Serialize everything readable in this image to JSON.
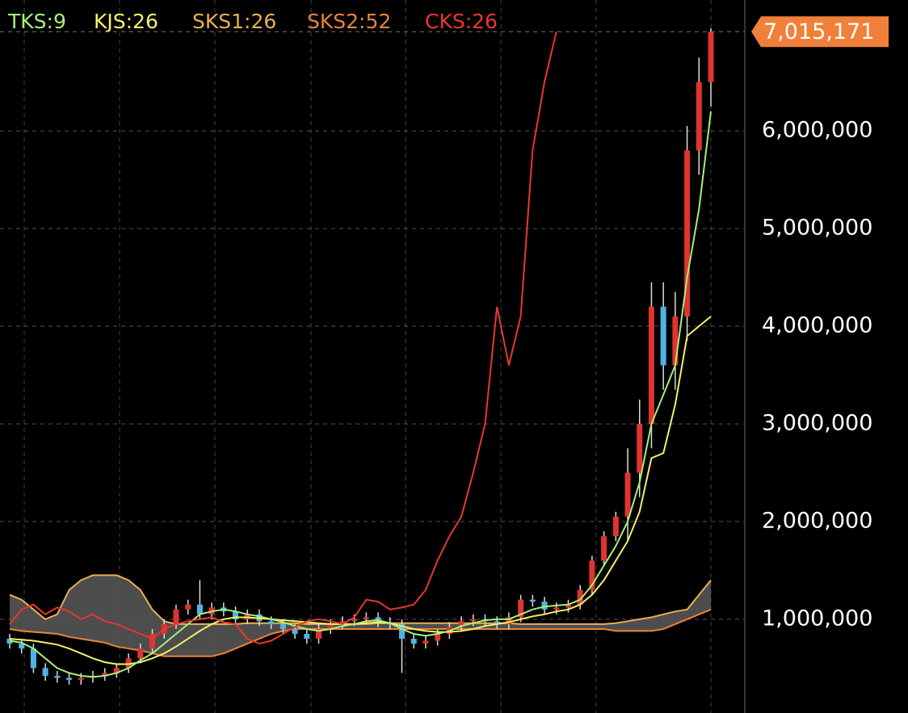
{
  "chart_data": {
    "type": "candlestick",
    "ylim": [
      40000,
      7340000
    ],
    "yticks": [
      {
        "value": 1000000,
        "label": "1,000,000"
      },
      {
        "value": 2000000,
        "label": "2,000,000"
      },
      {
        "value": 3000000,
        "label": "3,000,000"
      },
      {
        "value": 4000000,
        "label": "4,000,000"
      },
      {
        "value": 5000000,
        "label": "5,000,000"
      },
      {
        "value": 6000000,
        "label": "6,000,000"
      }
    ],
    "grid": true,
    "up_color": "#e0342f",
    "down_color": "#4fb3e8",
    "cloud_color": "#555555",
    "last_price": {
      "value": 7015171,
      "label": "7,015,171"
    },
    "last_price_color": "#f0803a",
    "open": [
      800000,
      750000,
      700000,
      500000,
      420000,
      400000,
      380000,
      400000,
      420000,
      450000,
      500000,
      600000,
      700000,
      850000,
      950000,
      1100000,
      1150000,
      1050000,
      1120000,
      1080000,
      1000000,
      1050000,
      980000,
      950000,
      900000,
      850000,
      800000,
      900000,
      950000,
      980000,
      1000000,
      1020000,
      970000,
      950000,
      800000,
      750000,
      780000,
      850000,
      920000,
      980000,
      1000000,
      980000,
      950000,
      1020000,
      1200000,
      1180000,
      1100000,
      1120000,
      1150000,
      1300000,
      1600000,
      1850000,
      2050000,
      2500000,
      3000000,
      4200000,
      3600000,
      4100000,
      5800000,
      6500000
    ],
    "high": [
      850000,
      800000,
      750000,
      550000,
      470000,
      450000,
      450000,
      470000,
      500000,
      550000,
      650000,
      750000,
      900000,
      1000000,
      1150000,
      1200000,
      1400000,
      1170000,
      1170000,
      1130000,
      1100000,
      1100000,
      1030000,
      1000000,
      950000,
      900000,
      950000,
      1000000,
      1030000,
      1050000,
      1070000,
      1070000,
      1020000,
      1000000,
      850000,
      830000,
      900000,
      970000,
      1030000,
      1050000,
      1050000,
      1030000,
      1070000,
      1250000,
      1250000,
      1230000,
      1170000,
      1200000,
      1350000,
      1650000,
      1900000,
      2100000,
      2750000,
      3250000,
      4450000,
      4450000,
      4350000,
      6050000,
      6750000,
      7050000
    ],
    "low": [
      700000,
      650000,
      450000,
      370000,
      350000,
      330000,
      330000,
      350000,
      370000,
      400000,
      450000,
      550000,
      650000,
      800000,
      900000,
      1050000,
      1000000,
      1000000,
      1030000,
      950000,
      950000,
      930000,
      900000,
      850000,
      800000,
      750000,
      750000,
      850000,
      900000,
      930000,
      950000,
      920000,
      900000,
      450000,
      700000,
      700000,
      730000,
      800000,
      870000,
      930000,
      930000,
      900000,
      900000,
      970000,
      1130000,
      1050000,
      1050000,
      1070000,
      1100000,
      1250000,
      1550000,
      1800000,
      1800000,
      2250000,
      2750000,
      3350000,
      3350000,
      3850000,
      5550000,
      6250000
    ],
    "close": [
      750000,
      700000,
      500000,
      420000,
      400000,
      380000,
      400000,
      420000,
      450000,
      500000,
      600000,
      700000,
      850000,
      950000,
      1100000,
      1150000,
      1050000,
      1120000,
      1080000,
      1000000,
      1050000,
      980000,
      950000,
      900000,
      850000,
      800000,
      900000,
      950000,
      980000,
      1000000,
      1020000,
      970000,
      950000,
      800000,
      750000,
      780000,
      850000,
      920000,
      980000,
      1000000,
      980000,
      950000,
      1020000,
      1200000,
      1180000,
      1100000,
      1120000,
      1150000,
      1300000,
      1600000,
      1850000,
      2050000,
      2500000,
      3000000,
      4200000,
      3600000,
      4100000,
      5800000,
      6500000,
      7015171
    ],
    "series": [
      {
        "name": "TKS:9",
        "color": "#a6f07a",
        "values": [
          780000,
          760000,
          700000,
          600000,
          500000,
          450000,
          420000,
          410000,
          420000,
          450000,
          500000,
          580000,
          650000,
          750000,
          850000,
          950000,
          1050000,
          1080000,
          1100000,
          1080000,
          1050000,
          1030000,
          1000000,
          970000,
          930000,
          900000,
          880000,
          900000,
          930000,
          950000,
          980000,
          990000,
          960000,
          900000,
          850000,
          830000,
          850000,
          880000,
          930000,
          960000,
          990000,
          1000000,
          1000000,
          1050000,
          1100000,
          1130000,
          1140000,
          1150000,
          1200000,
          1350000,
          1550000,
          1750000,
          2000000,
          2400000,
          3000000,
          3300000,
          3600000,
          4500000,
          5200000,
          6200000
        ]
      },
      {
        "name": "KJS:26",
        "color": "#f5f06a",
        "values": [
          800000,
          790000,
          780000,
          760000,
          740000,
          700000,
          650000,
          600000,
          560000,
          540000,
          540000,
          560000,
          600000,
          650000,
          720000,
          800000,
          880000,
          950000,
          1000000,
          1020000,
          1020000,
          1010000,
          1000000,
          990000,
          980000,
          970000,
          960000,
          950000,
          950000,
          950000,
          960000,
          970000,
          960000,
          930000,
          900000,
          880000,
          870000,
          870000,
          880000,
          900000,
          930000,
          950000,
          970000,
          1000000,
          1030000,
          1050000,
          1080000,
          1100000,
          1150000,
          1250000,
          1400000,
          1600000,
          1800000,
          2100000,
          2650000,
          2700000,
          3200000,
          3900000,
          4000000,
          4100000
        ]
      },
      {
        "name": "SKS1:26",
        "color": "#e8b050",
        "values": [
          1250000,
          1200000,
          1100000,
          1000000,
          1050000,
          1300000,
          1400000,
          1450000,
          1450000,
          1450000,
          1400000,
          1300000,
          1100000,
          980000,
          950000,
          950000,
          950000,
          950000,
          950000,
          950000,
          960000,
          960000,
          960000,
          960000,
          960000,
          950000,
          950000,
          950000,
          950000,
          950000,
          950000,
          960000,
          960000,
          960000,
          960000,
          960000,
          960000,
          960000,
          960000,
          960000,
          960000,
          960000,
          960000,
          950000,
          950000,
          950000,
          950000,
          950000,
          950000,
          950000,
          950000,
          960000,
          980000,
          1000000,
          1020000,
          1050000,
          1080000,
          1100000,
          1250000,
          1400000
        ]
      },
      {
        "name": "SKS2:52",
        "color": "#e8843a",
        "values": [
          900000,
          880000,
          870000,
          860000,
          850000,
          820000,
          800000,
          780000,
          760000,
          720000,
          700000,
          680000,
          650000,
          620000,
          620000,
          620000,
          620000,
          620000,
          650000,
          700000,
          750000,
          800000,
          850000,
          880000,
          900000,
          900000,
          900000,
          900000,
          900000,
          900000,
          900000,
          900000,
          900000,
          900000,
          900000,
          900000,
          900000,
          900000,
          900000,
          900000,
          900000,
          900000,
          900000,
          900000,
          900000,
          900000,
          900000,
          900000,
          900000,
          900000,
          900000,
          880000,
          880000,
          880000,
          880000,
          900000,
          950000,
          1000000,
          1050000,
          1100000
        ]
      },
      {
        "name": "CKS:26",
        "color": "#e8382e",
        "values": [
          950000,
          1100000,
          1150000,
          1050000,
          1120000,
          1080000,
          1000000,
          1050000,
          980000,
          950000,
          900000,
          850000,
          800000,
          900000,
          950000,
          980000,
          1000000,
          1020000,
          970000,
          950000,
          800000,
          750000,
          780000,
          850000,
          920000,
          980000,
          1000000,
          980000,
          950000,
          1020000,
          1200000,
          1180000,
          1100000,
          1120000,
          1150000,
          1300000,
          1600000,
          1850000,
          2050000,
          2500000,
          3000000,
          4200000,
          3600000,
          4100000,
          5800000,
          6500000,
          7015171,
          null,
          null,
          null,
          null,
          null,
          null,
          null,
          null,
          null,
          null,
          null,
          null,
          null
        ]
      }
    ]
  }
}
